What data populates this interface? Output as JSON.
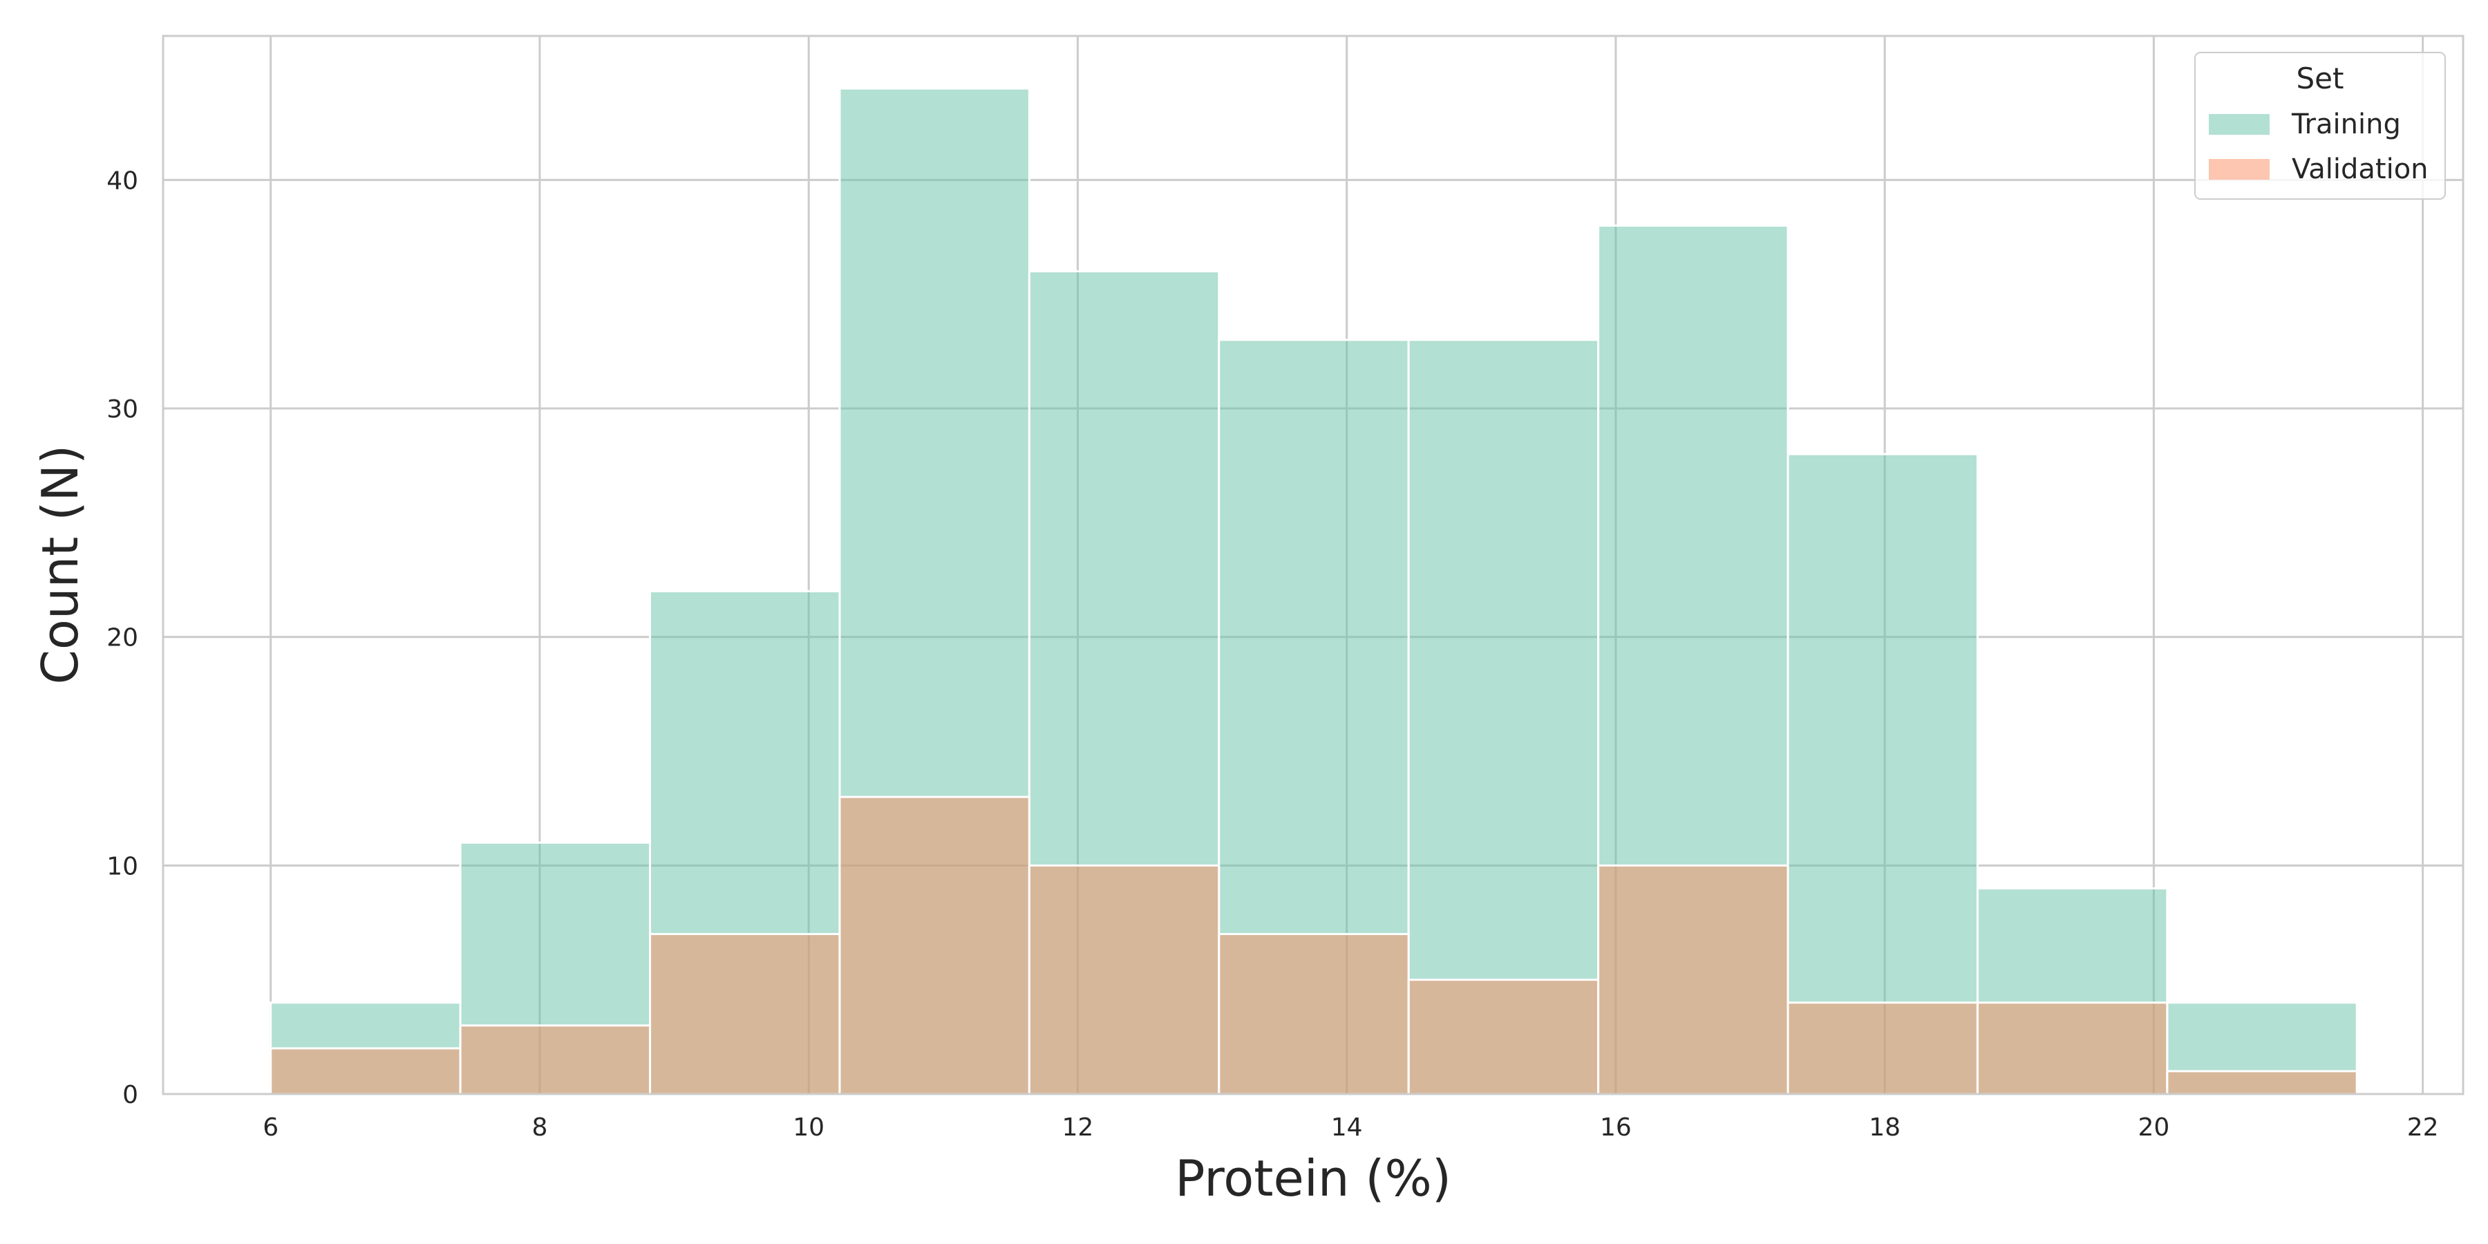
{
  "chart_data": {
    "type": "bar",
    "subtype": "histogram-overlay",
    "title": "",
    "xlabel": "Protein (%)",
    "ylabel": "Count (N)",
    "xlim": [
      5.2,
      22.3
    ],
    "ylim": [
      0,
      46.3
    ],
    "xticks": [
      6,
      8,
      10,
      12,
      14,
      16,
      18,
      20,
      22
    ],
    "yticks": [
      0,
      10,
      20,
      30,
      40
    ],
    "grid": true,
    "bin_edges": [
      6.0,
      7.41,
      8.82,
      10.23,
      11.64,
      13.05,
      14.46,
      15.87,
      17.28,
      18.69,
      20.1,
      21.51
    ],
    "series": [
      {
        "name": "Training",
        "color": "#66c2a5",
        "opacity": 0.5,
        "values": [
          4,
          11,
          22,
          44,
          36,
          33,
          33,
          38,
          28,
          9,
          4
        ]
      },
      {
        "name": "Validation",
        "color": "#fc8d62",
        "opacity": 0.5,
        "values": [
          2,
          3,
          7,
          13,
          10,
          7,
          5,
          10,
          4,
          4,
          1
        ]
      }
    ],
    "legend": {
      "title": "Set",
      "position": "top-right"
    }
  }
}
